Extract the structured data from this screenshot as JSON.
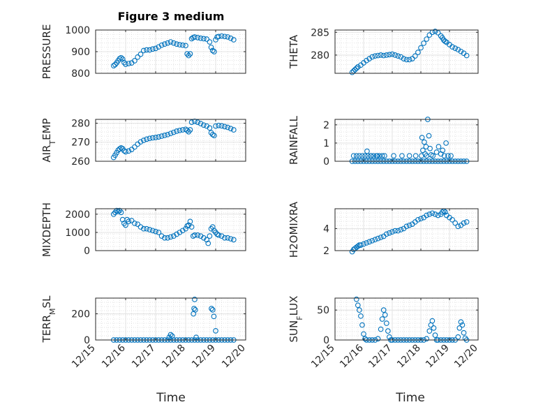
{
  "title": "Figure 3 medium",
  "marker_color": "#0072BD",
  "x_ticks": [
    "12/15",
    "12/16",
    "12/17",
    "12/18",
    "12/19",
    "12/20"
  ],
  "x_label": "Time",
  "chart_data": [
    {
      "type": "scatter",
      "ylabel": "PRESSURE",
      "yticks": [
        "800",
        "900",
        "1000"
      ],
      "ylim": [
        800,
        1000
      ],
      "xlim": [
        0,
        5
      ],
      "grid": "on, with minor grid",
      "x": [
        0.6,
        0.65,
        0.7,
        0.75,
        0.8,
        0.85,
        0.9,
        0.95,
        1.0,
        1.1,
        1.2,
        1.3,
        1.4,
        1.5,
        1.6,
        1.7,
        1.8,
        1.9,
        2.0,
        2.1,
        2.2,
        2.3,
        2.4,
        2.5,
        2.6,
        2.7,
        2.8,
        2.9,
        3.0,
        3.05,
        3.1,
        3.15,
        3.2,
        3.25,
        3.3,
        3.4,
        3.5,
        3.6,
        3.7,
        3.8,
        3.85,
        3.9,
        3.95,
        4.0,
        4.05,
        4.1,
        4.2,
        4.3,
        4.4,
        4.5,
        4.6
      ],
      "y": [
        835,
        840,
        848,
        858,
        868,
        872,
        866,
        850,
        842,
        845,
        848,
        858,
        875,
        888,
        905,
        908,
        908,
        912,
        915,
        922,
        930,
        935,
        940,
        945,
        940,
        935,
        932,
        930,
        928,
        890,
        882,
        890,
        960,
        965,
        968,
        965,
        962,
        960,
        958,
        945,
        920,
        905,
        900,
        955,
        968,
        970,
        972,
        970,
        968,
        962,
        955
      ]
    },
    {
      "type": "scatter",
      "ylabel": "THETA",
      "yticks": [
        "280",
        "285"
      ],
      "ylim": [
        276,
        285.5
      ],
      "xlim": [
        0,
        5
      ],
      "grid": "on, with minor grid",
      "x": [
        0.6,
        0.65,
        0.7,
        0.75,
        0.8,
        0.9,
        1.0,
        1.1,
        1.2,
        1.3,
        1.4,
        1.5,
        1.6,
        1.7,
        1.8,
        1.9,
        2.0,
        2.1,
        2.2,
        2.3,
        2.4,
        2.5,
        2.6,
        2.7,
        2.8,
        2.9,
        3.0,
        3.1,
        3.2,
        3.3,
        3.4,
        3.5,
        3.6,
        3.7,
        3.75,
        3.8,
        3.85,
        3.9,
        4.0,
        4.1,
        4.2,
        4.3,
        4.4,
        4.5,
        4.6
      ],
      "y": [
        276.2,
        276.5,
        276.8,
        277.1,
        277.4,
        277.8,
        278.3,
        278.8,
        279.2,
        279.6,
        279.8,
        279.9,
        280.0,
        279.9,
        280.0,
        280.1,
        280.2,
        280.0,
        279.8,
        279.6,
        279.2,
        279.0,
        279.0,
        279.2,
        279.8,
        280.6,
        281.6,
        282.6,
        283.5,
        284.4,
        285.0,
        285.2,
        284.9,
        284.2,
        283.8,
        283.3,
        283.0,
        282.8,
        282.3,
        281.8,
        281.5,
        281.2,
        280.8,
        280.4,
        279.9
      ]
    },
    {
      "type": "scatter",
      "ylabel": "AIR_TEMP",
      "yticks": [
        "260",
        "270",
        "280"
      ],
      "ylim": [
        260,
        282
      ],
      "xlim": [
        0,
        5
      ],
      "grid": "on, with minor grid",
      "x": [
        0.6,
        0.65,
        0.7,
        0.75,
        0.8,
        0.85,
        0.9,
        0.95,
        1.0,
        1.1,
        1.2,
        1.3,
        1.4,
        1.5,
        1.6,
        1.7,
        1.8,
        1.9,
        2.0,
        2.1,
        2.2,
        2.3,
        2.4,
        2.5,
        2.6,
        2.7,
        2.8,
        2.9,
        3.0,
        3.05,
        3.1,
        3.15,
        3.2,
        3.3,
        3.4,
        3.5,
        3.6,
        3.7,
        3.8,
        3.85,
        3.9,
        3.95,
        4.0,
        4.1,
        4.2,
        4.3,
        4.4,
        4.5,
        4.6
      ],
      "y": [
        262.0,
        263.2,
        264.5,
        265.8,
        266.5,
        267.0,
        266.6,
        265.5,
        265.0,
        265.4,
        266.2,
        267.5,
        269.0,
        270.2,
        271.0,
        271.6,
        272.0,
        272.3,
        272.5,
        272.8,
        273.2,
        273.6,
        274.0,
        274.6,
        275.2,
        275.8,
        276.2,
        276.5,
        276.8,
        276.2,
        275.5,
        276.5,
        280.5,
        281.0,
        280.5,
        279.8,
        279.0,
        278.5,
        277.5,
        275.0,
        274.0,
        273.5,
        278.5,
        278.8,
        278.6,
        278.2,
        277.8,
        277.2,
        276.5
      ]
    },
    {
      "type": "scatter",
      "ylabel": "RAINFALL",
      "yticks": [
        "0",
        "1",
        "2"
      ],
      "ylim": [
        0,
        2.3
      ],
      "xlim": [
        0,
        5
      ],
      "grid": "on, with minor grid",
      "x": [
        0.6,
        0.7,
        0.8,
        0.9,
        1.0,
        1.1,
        1.2,
        1.3,
        1.4,
        1.5,
        1.6,
        1.7,
        1.8,
        1.9,
        2.0,
        2.1,
        2.2,
        2.3,
        2.4,
        2.5,
        2.6,
        2.7,
        2.8,
        2.9,
        3.0,
        3.1,
        3.2,
        3.3,
        3.4,
        3.5,
        3.6,
        3.7,
        3.8,
        3.9,
        4.0,
        4.1,
        4.2,
        4.3,
        4.4,
        4.5,
        4.6,
        0.65,
        0.75,
        0.85,
        0.95,
        1.05,
        1.15,
        1.25,
        1.35,
        1.45,
        1.55,
        1.65,
        1.12,
        1.26,
        1.47,
        1.73,
        2.05,
        2.34,
        2.6,
        2.82,
        3.02,
        3.04,
        3.07,
        3.12,
        3.15,
        3.18,
        3.2,
        3.24,
        3.28,
        3.32,
        3.36,
        3.42,
        3.55,
        3.62,
        3.7,
        3.76,
        3.82,
        3.88,
        3.95,
        4.05
      ],
      "y": [
        0,
        0,
        0,
        0,
        0,
        0,
        0,
        0,
        0,
        0,
        0,
        0,
        0,
        0,
        0,
        0,
        0,
        0,
        0,
        0,
        0,
        0,
        0,
        0,
        0,
        0,
        0,
        0,
        0,
        0,
        0,
        0,
        0,
        0,
        0,
        0,
        0,
        0,
        0,
        0,
        0,
        0.3,
        0.3,
        0.3,
        0.3,
        0.3,
        0.3,
        0.3,
        0.3,
        0.3,
        0.3,
        0.3,
        0.55,
        0.3,
        0.3,
        0.3,
        0.3,
        0.3,
        0.3,
        0.3,
        0.3,
        1.3,
        0.6,
        1.05,
        0.4,
        0.8,
        0.3,
        2.3,
        1.4,
        0.7,
        0.35,
        0.3,
        0.5,
        0.8,
        0.4,
        0.6,
        0.3,
        1.0,
        0.3,
        0.3
      ]
    },
    {
      "type": "scatter",
      "ylabel": "MIXDEPTH",
      "yticks": [
        "0",
        "1000",
        "2000"
      ],
      "ylim": [
        0,
        2300
      ],
      "xlim": [
        0,
        5
      ],
      "grid": "on, with minor grid",
      "x": [
        0.6,
        0.65,
        0.7,
        0.75,
        0.8,
        0.85,
        0.9,
        0.95,
        1.0,
        1.05,
        1.1,
        1.2,
        1.3,
        1.4,
        1.5,
        1.6,
        1.7,
        1.8,
        1.9,
        2.0,
        2.1,
        2.2,
        2.3,
        2.4,
        2.5,
        2.6,
        2.7,
        2.8,
        2.9,
        3.0,
        3.05,
        3.1,
        3.15,
        3.2,
        3.25,
        3.3,
        3.4,
        3.5,
        3.6,
        3.7,
        3.75,
        3.8,
        3.85,
        3.9,
        3.95,
        4.0,
        4.05,
        4.1,
        4.2,
        4.3,
        4.4,
        4.5,
        4.6
      ],
      "y": [
        2000,
        2100,
        2200,
        2150,
        2200,
        2100,
        1700,
        1500,
        1400,
        1700,
        1600,
        1650,
        1500,
        1450,
        1300,
        1200,
        1200,
        1150,
        1100,
        1050,
        1000,
        800,
        700,
        700,
        750,
        800,
        900,
        1000,
        1100,
        1200,
        1350,
        1400,
        1600,
        1300,
        800,
        850,
        850,
        800,
        700,
        600,
        400,
        800,
        1200,
        1300,
        1100,
        1000,
        900,
        850,
        800,
        700,
        700,
        650,
        600
      ]
    },
    {
      "type": "scatter",
      "ylabel": "H2OMIXRA",
      "yticks": [
        "2",
        "4"
      ],
      "ylim": [
        2,
        5.8
      ],
      "xlim": [
        0,
        5
      ],
      "grid": "on, with minor grid",
      "x": [
        0.6,
        0.65,
        0.7,
        0.75,
        0.8,
        0.85,
        0.9,
        1.0,
        1.1,
        1.2,
        1.3,
        1.4,
        1.5,
        1.6,
        1.7,
        1.8,
        1.9,
        2.0,
        2.1,
        2.2,
        2.3,
        2.4,
        2.5,
        2.6,
        2.7,
        2.8,
        2.9,
        3.0,
        3.1,
        3.2,
        3.3,
        3.4,
        3.5,
        3.6,
        3.7,
        3.75,
        3.8,
        3.85,
        3.9,
        4.0,
        4.1,
        4.2,
        4.3,
        4.4,
        4.5,
        4.6
      ],
      "y": [
        1.9,
        2.1,
        2.2,
        2.3,
        2.4,
        2.5,
        2.5,
        2.6,
        2.7,
        2.8,
        2.9,
        3.0,
        3.1,
        3.2,
        3.3,
        3.5,
        3.6,
        3.7,
        3.8,
        3.8,
        3.9,
        4.0,
        4.2,
        4.3,
        4.4,
        4.6,
        4.8,
        4.9,
        5.0,
        5.2,
        5.3,
        5.4,
        5.3,
        5.2,
        5.3,
        5.5,
        5.6,
        5.5,
        5.2,
        5.0,
        4.8,
        4.5,
        4.2,
        4.3,
        4.5,
        4.6
      ]
    },
    {
      "type": "scatter",
      "ylabel": "TERR_MSL",
      "yticks": [
        "0",
        "200"
      ],
      "ylim": [
        0,
        320
      ],
      "xlim": [
        0,
        5
      ],
      "grid": "on, with minor grid",
      "x": [
        0.6,
        0.7,
        0.8,
        0.9,
        1.0,
        1.1,
        1.2,
        1.3,
        1.4,
        1.5,
        1.6,
        1.7,
        1.8,
        1.9,
        2.0,
        2.1,
        2.2,
        2.3,
        2.4,
        2.5,
        2.6,
        2.7,
        2.8,
        2.9,
        3.0,
        3.1,
        3.2,
        3.3,
        3.4,
        3.5,
        3.6,
        3.7,
        3.8,
        3.9,
        4.0,
        4.1,
        4.2,
        4.3,
        4.4,
        4.5,
        4.6,
        2.45,
        2.5,
        2.55,
        3.26,
        3.28,
        3.3,
        3.32,
        3.35,
        3.86,
        3.9,
        3.94,
        4.0
      ],
      "y": [
        0,
        0,
        0,
        0,
        0,
        0,
        0,
        0,
        0,
        0,
        0,
        0,
        0,
        0,
        0,
        0,
        0,
        0,
        0,
        0,
        0,
        0,
        0,
        0,
        0,
        0,
        0,
        0,
        0,
        0,
        0,
        0,
        0,
        0,
        0,
        0,
        0,
        0,
        0,
        0,
        0,
        20,
        40,
        30,
        200,
        240,
        310,
        230,
        20,
        240,
        230,
        180,
        70
      ]
    },
    {
      "type": "scatter",
      "ylabel": "SUN_FLUX",
      "yticks": [
        "0",
        "50"
      ],
      "ylim": [
        0,
        70
      ],
      "xlim": [
        0,
        5
      ],
      "grid": "on, with minor grid",
      "x": [
        0.75,
        0.8,
        0.85,
        0.9,
        0.95,
        1.0,
        1.05,
        1.1,
        1.2,
        1.3,
        1.4,
        1.5,
        1.6,
        1.65,
        1.7,
        1.75,
        1.8,
        1.85,
        1.9,
        1.95,
        2.0,
        2.1,
        2.2,
        2.3,
        2.4,
        2.5,
        2.6,
        2.7,
        2.8,
        2.9,
        3.0,
        3.1,
        3.2,
        3.3,
        3.35,
        3.4,
        3.45,
        3.5,
        3.55,
        3.6,
        3.7,
        3.8,
        3.9,
        4.0,
        4.1,
        4.2,
        4.3,
        4.35,
        4.4,
        4.45,
        4.5,
        4.55,
        4.6
      ],
      "y": [
        68,
        58,
        50,
        40,
        25,
        10,
        2,
        0,
        0,
        0,
        0,
        2,
        18,
        35,
        50,
        42,
        28,
        15,
        5,
        0,
        0,
        0,
        0,
        0,
        0,
        0,
        0,
        0,
        0,
        0,
        0,
        0,
        2,
        15,
        25,
        32,
        20,
        8,
        0,
        0,
        0,
        0,
        0,
        0,
        0,
        0,
        5,
        20,
        30,
        25,
        12,
        3,
        0
      ]
    }
  ]
}
